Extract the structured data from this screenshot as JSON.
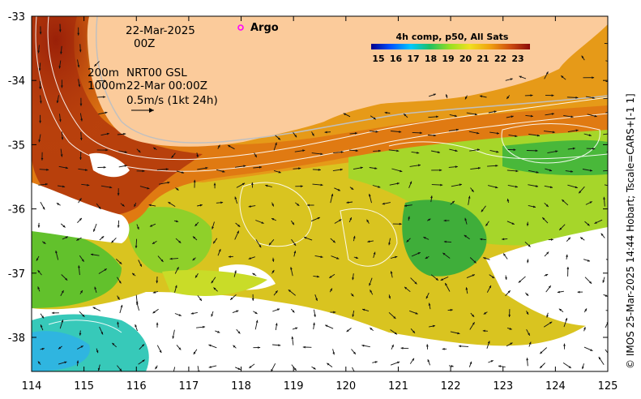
{
  "map": {
    "date_label": "22-Mar-2025",
    "time_label": "00Z",
    "contour_200": "200m",
    "contour_1000": "1000m",
    "source_label": "NRT00 GSL",
    "source_time": "22-Mar 00:00Z",
    "scale_label": "0.5m/s (1kt 24h)",
    "argo_label": "Argo",
    "credit": "© IMOS 25-Mar-2025 14:44 Hobart; Tscale=CARS+[-1 1]",
    "x_ticks": [
      "114",
      "115",
      "116",
      "117",
      "118",
      "119",
      "120",
      "121",
      "122",
      "123",
      "124",
      "125"
    ],
    "y_ticks": [
      "-33",
      "-34",
      "-35",
      "-36",
      "-37",
      "-38"
    ],
    "colors": {
      "land": "#fbcb9b",
      "warm": "#a52a0a",
      "orange": "#e8900f",
      "yellow": "#d8d81e",
      "green": "#6fcf2a",
      "deep_green": "#1fa83a",
      "cyan": "#3fd3c8",
      "argo": "#ff00ff"
    }
  },
  "colorbar": {
    "title": "4h comp, p50, All Sats",
    "ticks": [
      "15",
      "16",
      "17",
      "18",
      "19",
      "20",
      "21",
      "22",
      "23"
    ]
  }
}
